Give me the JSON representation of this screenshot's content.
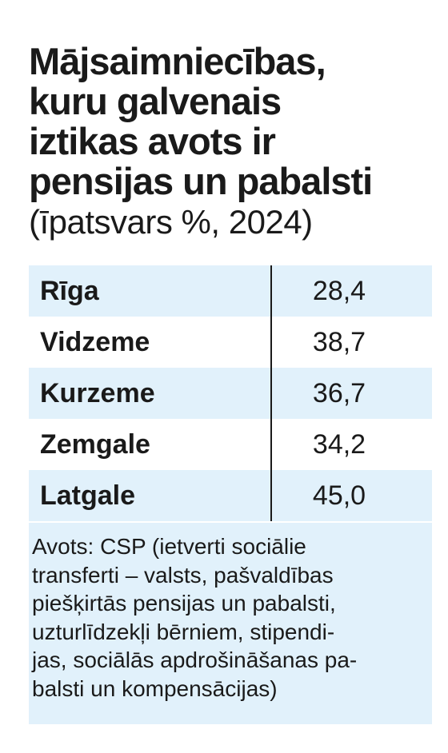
{
  "header": {
    "title": "Mājsaimniecības,\nkuru galvenais\niztikas avots ir\npensijas un pabalsti",
    "subtitle": "(īpatsvars %, 2024)"
  },
  "chart_data": {
    "type": "table",
    "title": "Mājsaimniecības, kuru galvenais iztikas avots ir pensijas un pabalsti",
    "subtitle": "(īpatsvars %, 2024)",
    "unit": "%",
    "year": "2024",
    "categories": [
      "Rīga",
      "Vidzeme",
      "Kurzeme",
      "Zemgale",
      "Latgale"
    ],
    "values": [
      28.4,
      38.7,
      36.7,
      34.2,
      45.0
    ],
    "rows": [
      {
        "region": "Rīga",
        "value": "28,4"
      },
      {
        "region": "Vidzeme",
        "value": "38,7"
      },
      {
        "region": "Kurzeme",
        "value": "36,7"
      },
      {
        "region": "Zemgale",
        "value": "34,2"
      },
      {
        "region": "Latgale",
        "value": "45,0"
      }
    ]
  },
  "footer": {
    "source": "Avots: CSP (ietverti sociālie\ntransferti – valsts, pašvaldības\npiešķirtās pensijas un pabalsti,\nuzturlīdzekļi bērniem, stipendi-\njas, sociālās apdrošināšanas pa-\nbalsti un kompensācijas)"
  },
  "colors": {
    "row_stripe": "#e1f1fb",
    "text": "#1a1a1a",
    "background": "#ffffff"
  }
}
